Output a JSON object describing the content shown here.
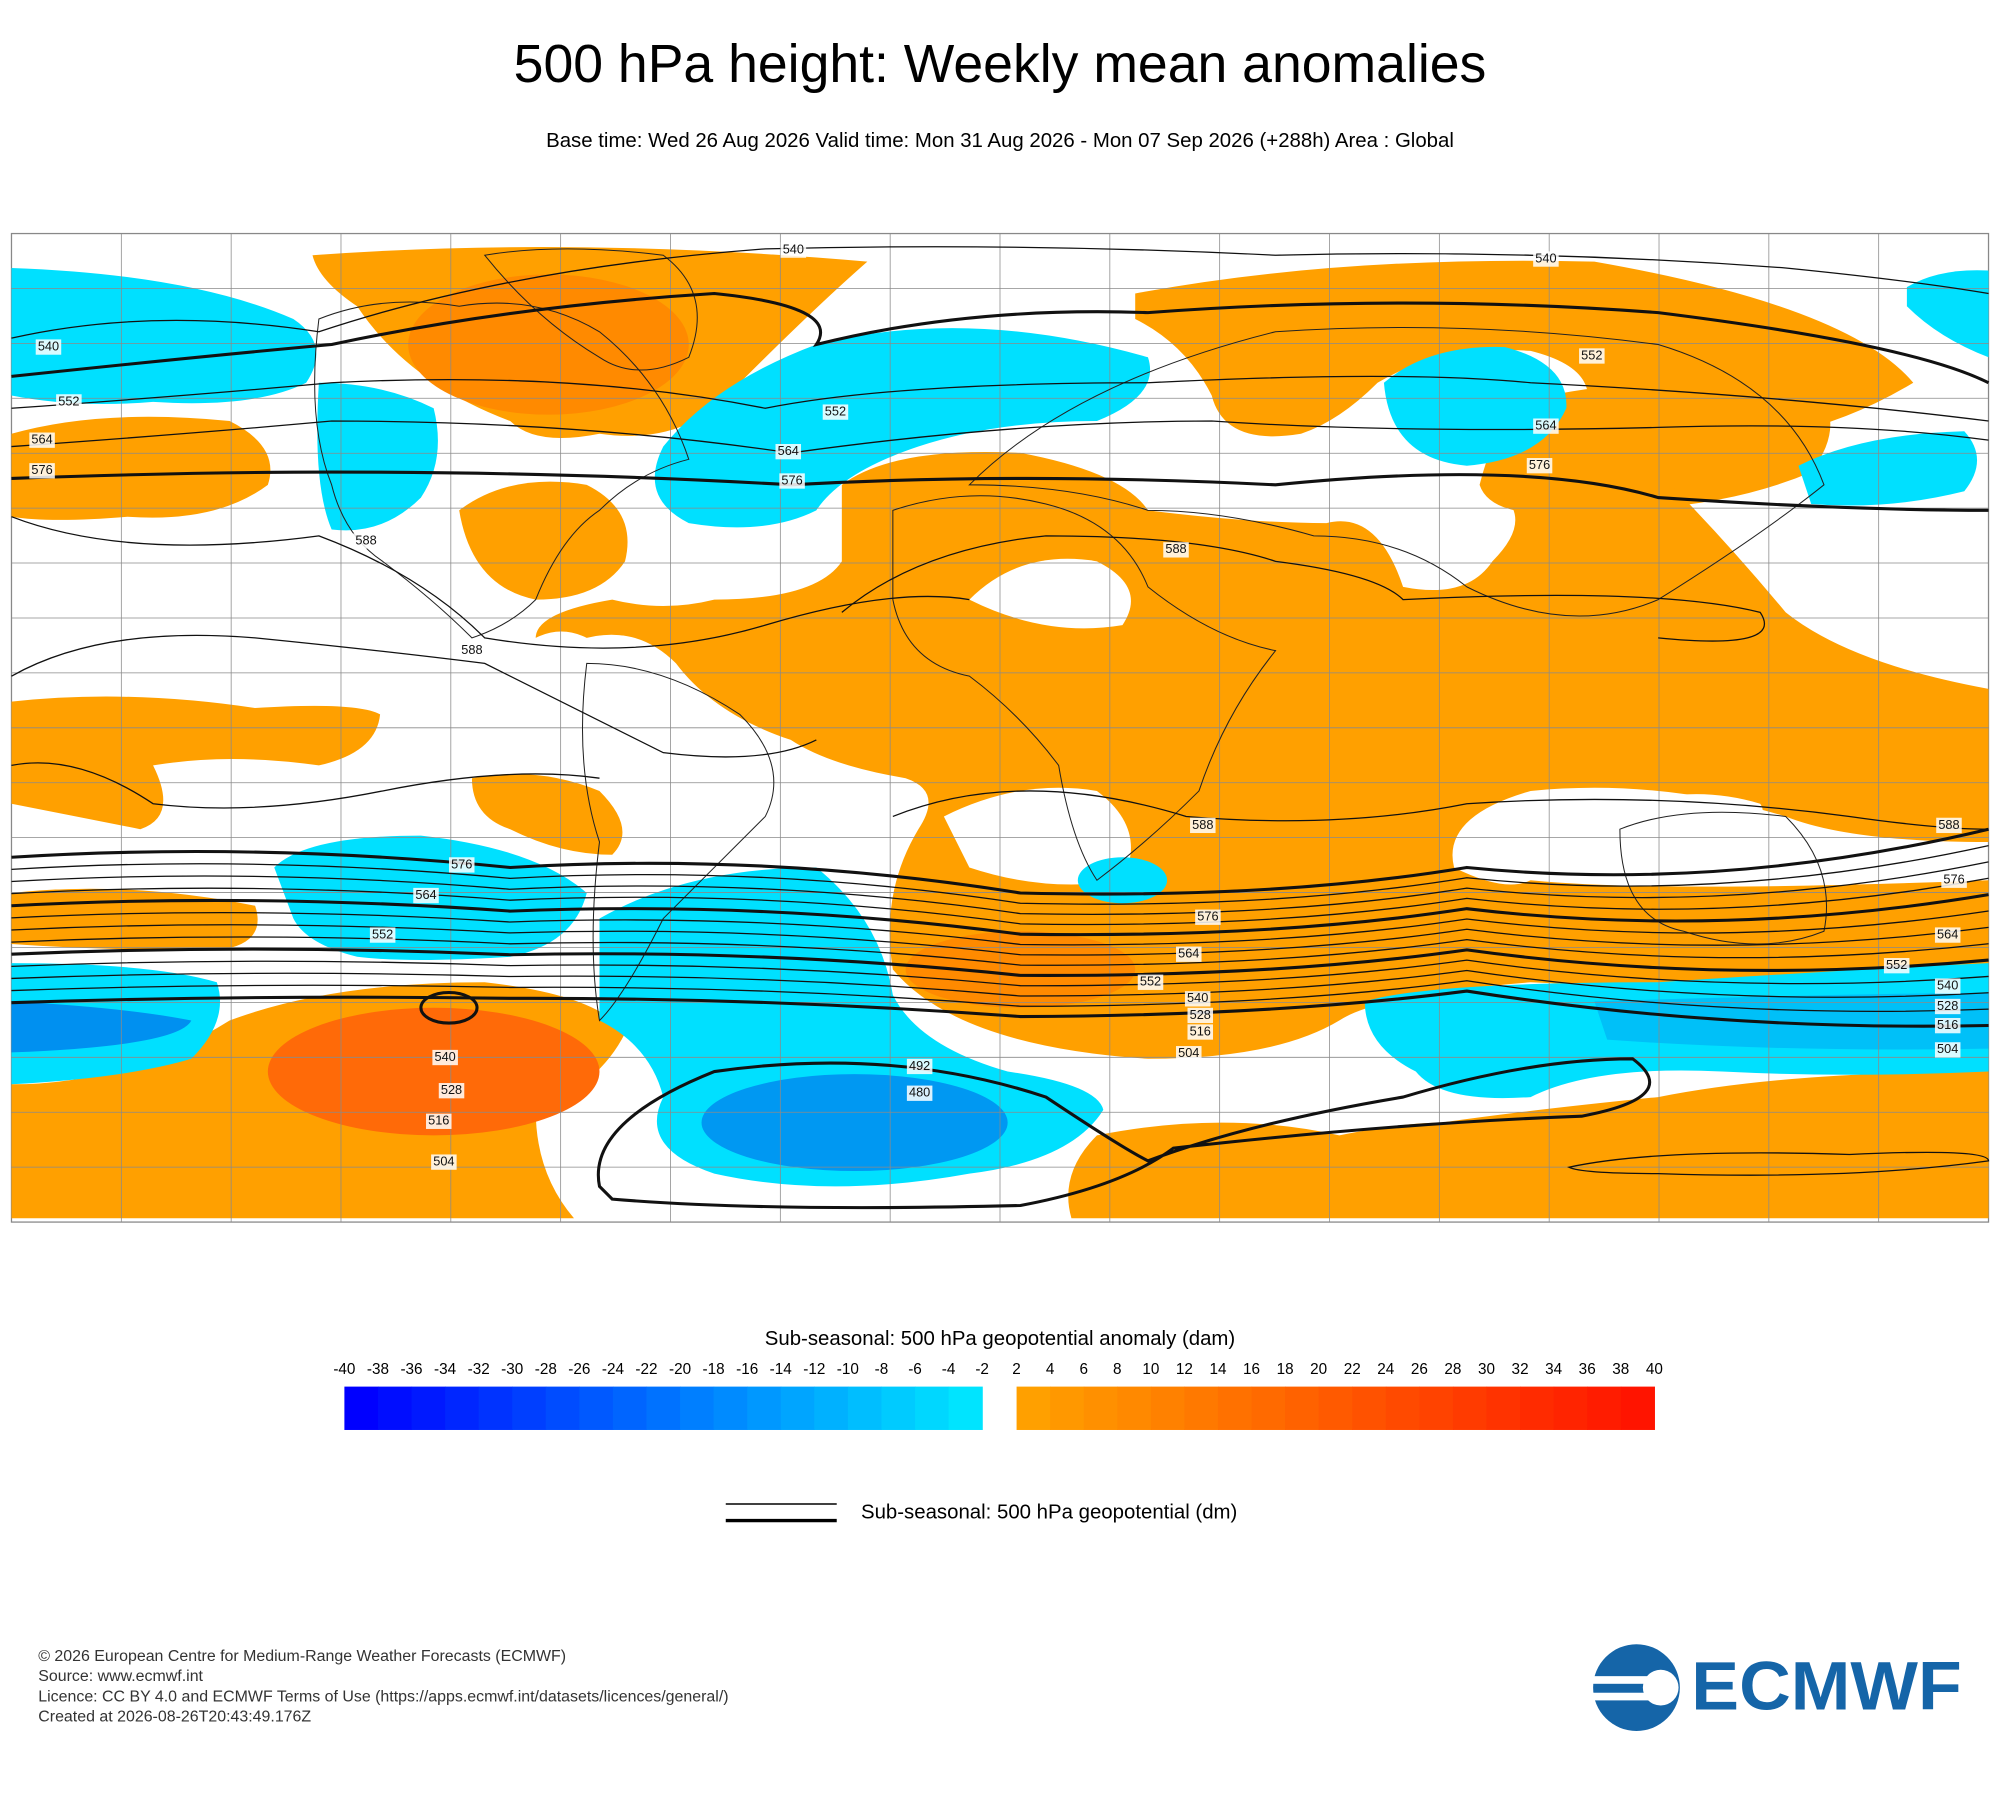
{
  "header": {
    "title": "500 hPa height: Weekly mean anomalies",
    "subtitle": "Base time: Wed 26 Aug 2026 Valid time: Mon 31 Aug 2026 - Mon 07 Sep 2026 (+288h) Area : Global"
  },
  "map": {
    "contour_labels": [
      540,
      540,
      540,
      552,
      564,
      576,
      552,
      564,
      576,
      552,
      564,
      576,
      588,
      588,
      588,
      588,
      588,
      576,
      564,
      552,
      576,
      564,
      552,
      540,
      528,
      516,
      504,
      576,
      564,
      552,
      540,
      528,
      516,
      504,
      540,
      528,
      516,
      504,
      492,
      480
    ]
  },
  "colorbar": {
    "title": "Sub-seasonal: 500 hPa geopotential anomaly (dam)",
    "ticks_negative": [
      -40,
      -38,
      -36,
      -34,
      -32,
      -30,
      -28,
      -26,
      -24,
      -22,
      -20,
      -18,
      -16,
      -14,
      -12,
      -10,
      -8,
      -6,
      -4,
      -2
    ],
    "ticks_positive": [
      2,
      4,
      6,
      8,
      10,
      12,
      14,
      16,
      18,
      20,
      22,
      24,
      26,
      28,
      30,
      32,
      34,
      36,
      38,
      40
    ],
    "colors": {
      "negative": [
        "#0000ff",
        "#00e4ff"
      ],
      "positive": [
        "#ffa000",
        "#ff1400"
      ]
    }
  },
  "legend": {
    "label": "Sub-seasonal: 500 hPa geopotential (dm)"
  },
  "footer": {
    "lines": [
      "© 2026 European Centre for Medium-Range Weather Forecasts (ECMWF)",
      "Source: www.ecmwf.int",
      "Licence: CC BY 4.0 and ECMWF Terms of Use (https://apps.ecmwf.int/datasets/licences/general/)",
      "Created at 2026-08-26T20:43:49.176Z"
    ]
  },
  "logo": {
    "text": "ECMWF"
  }
}
